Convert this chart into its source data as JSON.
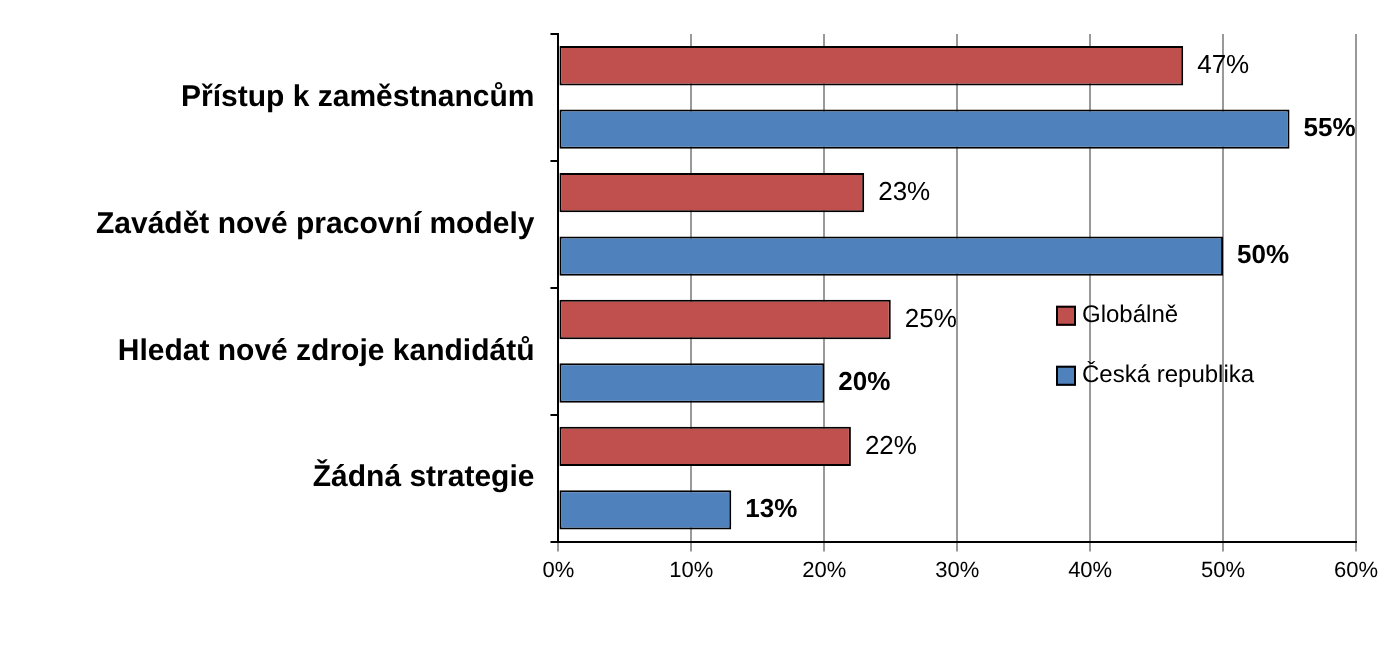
{
  "chart_data": {
    "type": "bar",
    "orientation": "horizontal",
    "categories": [
      "Přístup k zaměstnancům",
      "Zavádět nové pracovní modely",
      "Hledat nové zdroje kandidátů",
      "Žádná strategie"
    ],
    "series": [
      {
        "name": "Globálně",
        "color": "#c0504d",
        "values": [
          47,
          23,
          25,
          22
        ],
        "value_labels": [
          "47%",
          "23%",
          "25%",
          "22%"
        ]
      },
      {
        "name": "Česká republika",
        "color": "#4f81bd",
        "values": [
          55,
          50,
          20,
          13
        ],
        "value_labels": [
          "55%",
          "50%",
          "20%",
          "13%"
        ]
      }
    ],
    "xlim": [
      0,
      60
    ],
    "xticks": [
      {
        "value": 0,
        "label": "0%"
      },
      {
        "value": 10,
        "label": "10%"
      },
      {
        "value": 20,
        "label": "20%"
      },
      {
        "value": 30,
        "label": "30%"
      },
      {
        "value": 40,
        "label": "40%"
      },
      {
        "value": 50,
        "label": "50%"
      },
      {
        "value": 60,
        "label": "60%"
      }
    ],
    "grid": "x",
    "legend": "right"
  }
}
